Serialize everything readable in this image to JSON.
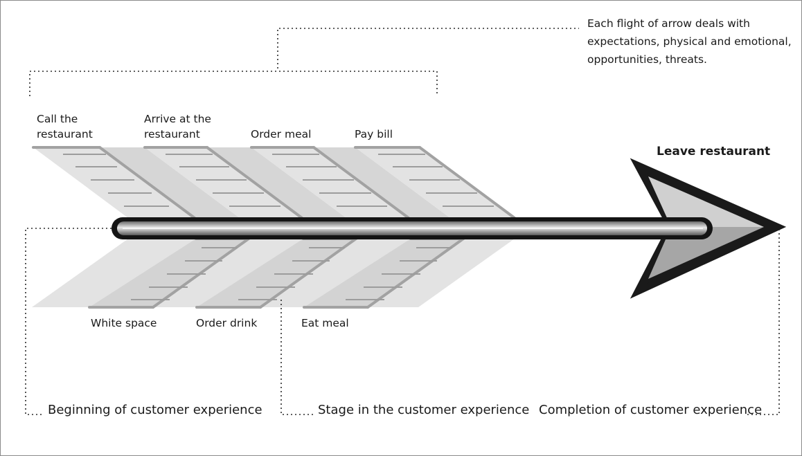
{
  "note": {
    "lines": [
      "Each flight of arrow deals with",
      "expectations, physical and emotional,",
      "opportunities, threats."
    ]
  },
  "stages_top": [
    {
      "lines": [
        "Call the",
        "restaurant"
      ]
    },
    {
      "lines": [
        "Arrive at the",
        "restaurant"
      ]
    },
    {
      "lines": [
        "Order meal"
      ]
    },
    {
      "lines": [
        "Pay bill"
      ]
    }
  ],
  "stages_bottom": [
    {
      "label": "White space"
    },
    {
      "label": "Order drink"
    },
    {
      "label": "Eat meal"
    }
  ],
  "arrow_head_label": "Leave restaurant",
  "footer": {
    "beginning": "Beginning of customer experience",
    "stage": "Stage in the customer experience",
    "completion": "Completion of customer experience"
  }
}
